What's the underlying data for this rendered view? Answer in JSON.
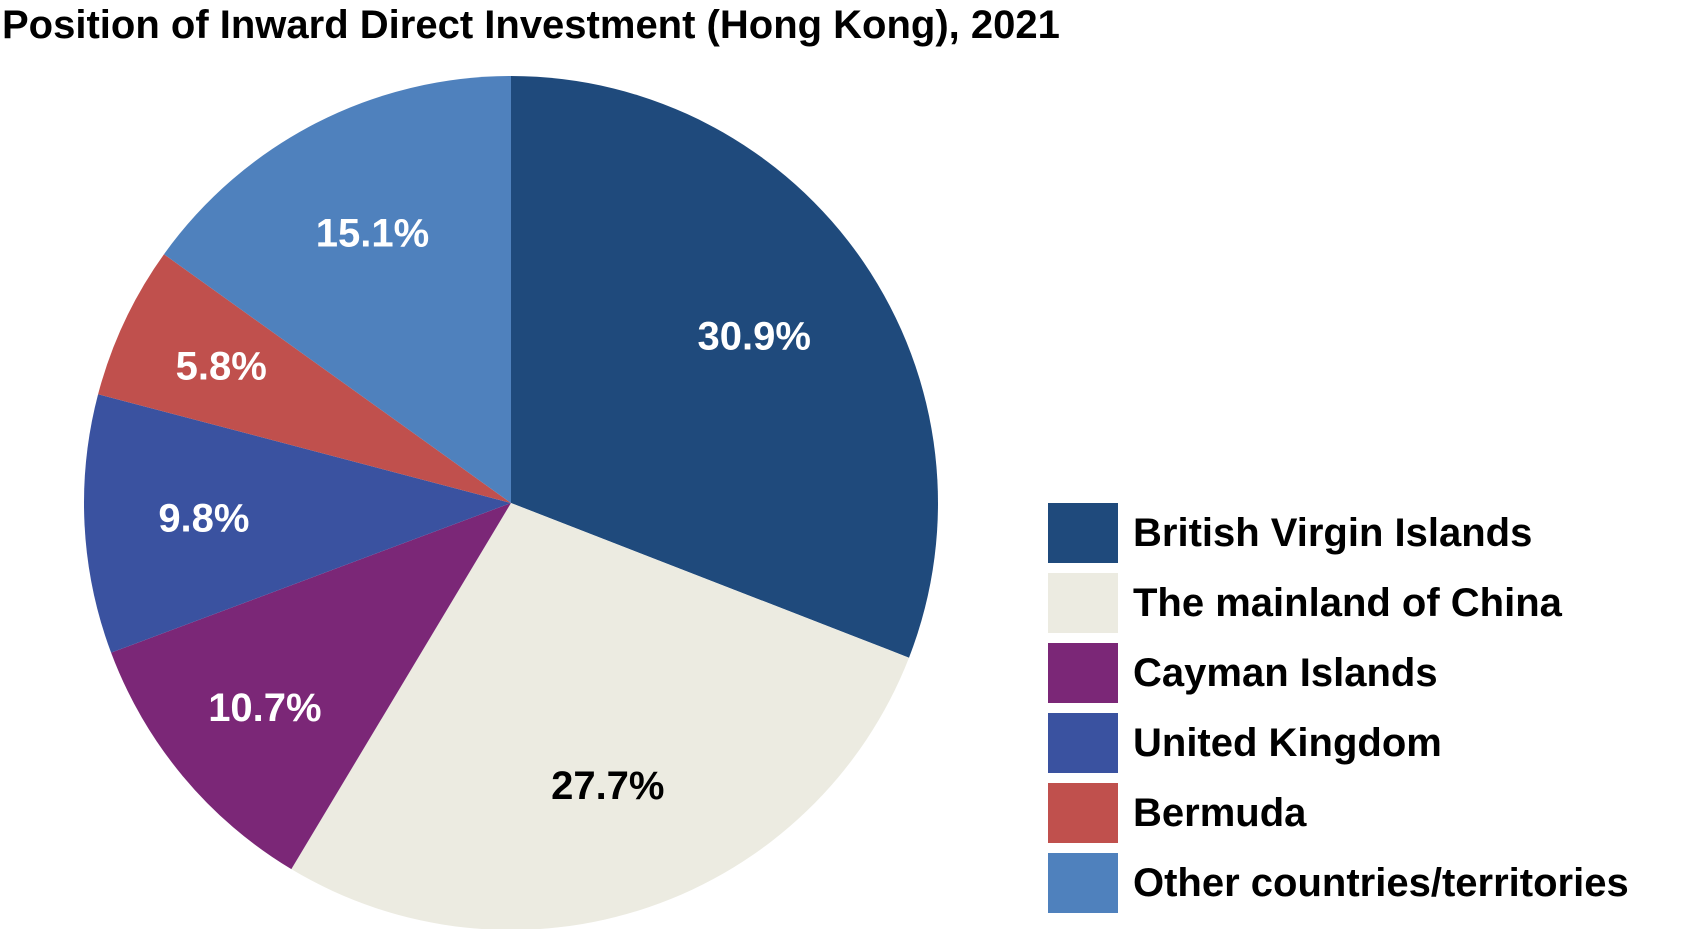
{
  "chart_data": {
    "type": "pie",
    "title": "Position of Inward Direct Investment (Hong Kong), 2021",
    "slices": [
      {
        "label": "British Virgin Islands",
        "value": 30.9,
        "display": "30.9%",
        "color": "#1f4a7c",
        "label_color": "#ffffff"
      },
      {
        "label": "The mainland of China",
        "value": 27.7,
        "display": "27.7%",
        "color": "#ecebe1",
        "label_color": "#000000"
      },
      {
        "label": "Cayman Islands",
        "value": 10.7,
        "display": "10.7%",
        "color": "#7b2777",
        "label_color": "#ffffff"
      },
      {
        "label": "United Kingdom",
        "value": 9.8,
        "display": "9.8%",
        "color": "#3a52a0",
        "label_color": "#ffffff"
      },
      {
        "label": "Bermuda",
        "value": 5.8,
        "display": "5.8%",
        "color": "#c0504d",
        "label_color": "#ffffff"
      },
      {
        "label": "Other countries/territories",
        "value": 15.1,
        "display": "15.1%",
        "color": "#4f81bd",
        "label_color": "#ffffff"
      }
    ],
    "start_angle": "12 o'clock",
    "direction": "clockwise",
    "legend_position": "bottom-right"
  }
}
